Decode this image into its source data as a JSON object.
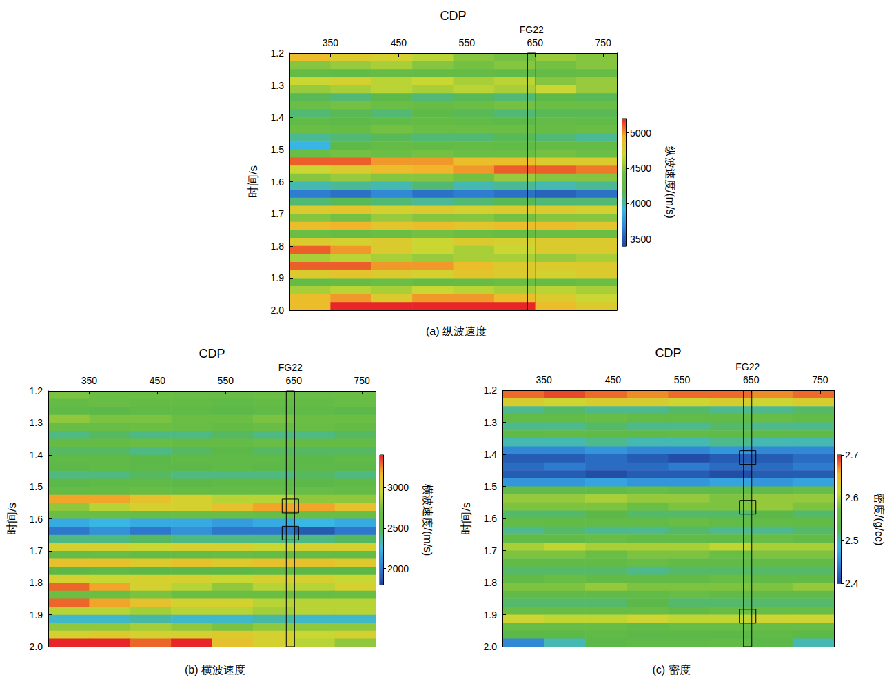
{
  "chart_data": [
    {
      "type": "heatmap",
      "xlabel": "CDP",
      "ylabel": "时间/s",
      "caption": "(a) 纵波速度",
      "xlim": [
        290,
        770
      ],
      "xticks": [
        350,
        450,
        550,
        650,
        750
      ],
      "ylim": [
        1.2,
        2.0
      ],
      "yticks": [
        1.2,
        1.3,
        1.4,
        1.5,
        1.6,
        1.7,
        1.8,
        1.9,
        {
          "value": 2,
          "label": "2.0"
        }
      ],
      "x": [
        320,
        380,
        440,
        500,
        560,
        620,
        680,
        740
      ],
      "y": [
        1.2125,
        1.2375,
        1.2625,
        1.2875,
        1.3125,
        1.3375,
        1.3625,
        1.3875,
        1.4125,
        1.4375,
        1.4625,
        1.4875,
        1.5125,
        1.5375,
        1.5625,
        1.5875,
        1.6125,
        1.6375,
        1.6625,
        1.6875,
        1.7125,
        1.7375,
        1.7625,
        1.7875,
        1.8125,
        1.8375,
        1.8625,
        1.8875,
        1.9125,
        1.9375,
        1.9625,
        1.9875
      ],
      "z": [
        [
          4900,
          4800,
          4750,
          4650,
          4500,
          4450,
          4550,
          4500
        ],
        [
          4500,
          4550,
          4600,
          4500,
          4450,
          4500,
          4450,
          4500
        ],
        [
          4300,
          4250,
          4350,
          4300,
          4300,
          4250,
          4300,
          4350
        ],
        [
          4700,
          4750,
          4650,
          4700,
          4600,
          4650,
          4500,
          4550
        ],
        [
          4550,
          4600,
          4650,
          4600,
          4650,
          4600,
          4700,
          4550
        ],
        [
          4150,
          4100,
          4200,
          4100,
          4150,
          4100,
          4200,
          4150
        ],
        [
          4400,
          4450,
          4400,
          4350,
          4400,
          4450,
          4400,
          4400
        ],
        [
          4100,
          4150,
          4100,
          4200,
          4150,
          4100,
          4150,
          4150
        ],
        [
          4250,
          4200,
          4250,
          4300,
          4250,
          4200,
          4300,
          4250
        ],
        [
          4400,
          4350,
          4450,
          4400,
          4400,
          4400,
          4350,
          4400
        ],
        [
          4050,
          4100,
          4150,
          4100,
          4100,
          4150,
          4100,
          4050
        ],
        [
          3900,
          4200,
          4300,
          4250,
          4300,
          4250,
          4300,
          4300
        ],
        [
          4400,
          4450,
          4400,
          4450,
          4400,
          4400,
          4450,
          4400
        ],
        [
          5100,
          5100,
          5000,
          5000,
          4900,
          4900,
          4800,
          4800
        ],
        [
          4700,
          4800,
          4900,
          4950,
          5000,
          5100,
          5100,
          5050
        ],
        [
          4500,
          4550,
          4500,
          4500,
          4450,
          4550,
          4500,
          4500
        ],
        [
          4000,
          4050,
          4000,
          4100,
          4000,
          4050,
          4000,
          4050
        ],
        [
          3650,
          3600,
          3700,
          3600,
          3650,
          3600,
          3550,
          3600
        ],
        [
          4100,
          4150,
          4100,
          4050,
          4100,
          4150,
          4100,
          4100
        ],
        [
          4800,
          4850,
          4750,
          4800,
          4750,
          4800,
          4800,
          4750
        ],
        [
          4500,
          4450,
          4550,
          4500,
          4500,
          4450,
          4500,
          4500
        ],
        [
          4900,
          4950,
          4850,
          4900,
          4850,
          4900,
          4900,
          4850
        ],
        [
          4400,
          4350,
          4400,
          4450,
          4400,
          4350,
          4400,
          4400
        ],
        [
          4800,
          4750,
          4800,
          4700,
          4800,
          4750,
          4800,
          4800
        ],
        [
          5100,
          5000,
          4800,
          4700,
          4600,
          4700,
          4800,
          4800
        ],
        [
          4600,
          4650,
          4600,
          4550,
          4600,
          4600,
          4550,
          4600
        ],
        [
          5100,
          5100,
          5000,
          5000,
          4900,
          4800,
          4800,
          4800
        ],
        [
          4800,
          4850,
          4800,
          4750,
          4850,
          4800,
          4750,
          4800
        ],
        [
          4300,
          4350,
          4400,
          4300,
          4350,
          4400,
          4350,
          4400
        ],
        [
          4600,
          4650,
          4600,
          4700,
          4650,
          4600,
          4650,
          4600
        ],
        [
          4900,
          5000,
          4800,
          5000,
          5000,
          4900,
          4800,
          4700
        ],
        [
          4900,
          5200,
          5200,
          5200,
          5200,
          5200,
          4900,
          4800
        ]
      ],
      "colorbar": {
        "label": "纵波速度/(m/s)",
        "range": [
          3400,
          5200
        ],
        "ticks": [
          3500,
          4000,
          4500,
          5000
        ]
      },
      "well": {
        "name": "FG22",
        "cdp": 645,
        "highlight_times": []
      }
    },
    {
      "type": "heatmap",
      "xlabel": "CDP",
      "ylabel": "时间/s",
      "caption": "(b) 横波速度",
      "xlim": [
        290,
        770
      ],
      "xticks": [
        350,
        450,
        550,
        650,
        750
      ],
      "ylim": [
        1.2,
        2.0
      ],
      "yticks": [
        1.2,
        1.3,
        1.4,
        1.5,
        1.6,
        1.7,
        1.8,
        1.9,
        {
          "value": 2,
          "label": "2.0"
        }
      ],
      "x": [
        320,
        380,
        440,
        500,
        560,
        620,
        680,
        740
      ],
      "y": [
        1.2125,
        1.2375,
        1.2625,
        1.2875,
        1.3125,
        1.3375,
        1.3625,
        1.3875,
        1.4125,
        1.4375,
        1.4625,
        1.4875,
        1.5125,
        1.5375,
        1.5625,
        1.5875,
        1.6125,
        1.6375,
        1.6625,
        1.6875,
        1.7125,
        1.7375,
        1.7625,
        1.7875,
        1.8125,
        1.8375,
        1.8625,
        1.8875,
        1.9125,
        1.9375,
        1.9625,
        1.9875
      ],
      "z": [
        [
          2750,
          2700,
          2700,
          2650,
          2650,
          2700,
          2650,
          2700
        ],
        [
          2600,
          2650,
          2600,
          2600,
          2550,
          2600,
          2600,
          2650
        ],
        [
          2550,
          2500,
          2550,
          2550,
          2500,
          2550,
          2550,
          2500
        ],
        [
          2800,
          2750,
          2750,
          2700,
          2700,
          2750,
          2700,
          2700
        ],
        [
          2650,
          2650,
          2700,
          2650,
          2600,
          2650,
          2650,
          2600
        ],
        [
          2400,
          2450,
          2400,
          2400,
          2450,
          2400,
          2400,
          2450
        ],
        [
          2600,
          2600,
          2650,
          2600,
          2600,
          2650,
          2600,
          2600
        ],
        [
          2450,
          2450,
          2400,
          2450,
          2500,
          2450,
          2450,
          2450
        ],
        [
          2550,
          2550,
          2500,
          2550,
          2550,
          2550,
          2500,
          2550
        ],
        [
          2500,
          2550,
          2500,
          2500,
          2550,
          2500,
          2500,
          2500
        ],
        [
          2400,
          2400,
          2450,
          2400,
          2400,
          2400,
          2450,
          2400
        ],
        [
          2500,
          2550,
          2550,
          2500,
          2550,
          2550,
          2500,
          2550
        ],
        [
          2600,
          2600,
          2650,
          2600,
          2600,
          2600,
          2650,
          2600
        ],
        [
          3200,
          3200,
          3100,
          3000,
          2900,
          2900,
          2800,
          2800
        ],
        [
          2800,
          2900,
          3000,
          3000,
          3100,
          3200,
          3200,
          3100
        ],
        [
          2700,
          2700,
          2650,
          2700,
          2700,
          2650,
          2700,
          2700
        ],
        [
          2200,
          2250,
          2200,
          2200,
          2150,
          2200,
          2250,
          2200
        ],
        [
          2000,
          2100,
          2000,
          2100,
          2000,
          2000,
          1900,
          2000
        ],
        [
          2400,
          2400,
          2450,
          2400,
          2400,
          2400,
          2400,
          2450
        ],
        [
          3000,
          3000,
          2950,
          3000,
          3000,
          2950,
          3000,
          3000
        ],
        [
          2600,
          2650,
          2600,
          2600,
          2650,
          2600,
          2600,
          2600
        ],
        [
          3100,
          3100,
          3050,
          3100,
          3050,
          3100,
          3100,
          3050
        ],
        [
          2500,
          2550,
          2500,
          2500,
          2500,
          2550,
          2500,
          2500
        ],
        [
          3000,
          2950,
          3000,
          3000,
          2950,
          3000,
          3000,
          2950
        ],
        [
          3300,
          3200,
          3000,
          2900,
          2800,
          2900,
          2900,
          3000
        ],
        [
          2700,
          2700,
          2750,
          2700,
          2700,
          2700,
          2650,
          2700
        ],
        [
          3300,
          3200,
          3100,
          3000,
          3000,
          2900,
          2900,
          2900
        ],
        [
          2900,
          2900,
          2850,
          2900,
          2900,
          2850,
          2900,
          2900
        ],
        [
          2300,
          2300,
          2350,
          2300,
          2300,
          2350,
          2300,
          2300
        ],
        [
          2800,
          2800,
          2850,
          2800,
          2750,
          2800,
          2800,
          2800
        ],
        [
          3000,
          3050,
          3000,
          3000,
          3050,
          3000,
          2950,
          3000
        ],
        [
          3400,
          3400,
          3300,
          3400,
          3100,
          3000,
          2900,
          2800
        ]
      ],
      "colorbar": {
        "label": "横波速度/(m/s)",
        "range": [
          1800,
          3400
        ],
        "ticks": [
          2000,
          2500,
          3000
        ]
      },
      "well": {
        "name": "FG22",
        "cdp": 645,
        "highlight_times": [
          1.56,
          1.645
        ]
      }
    },
    {
      "type": "heatmap",
      "xlabel": "CDP",
      "ylabel": "时间/s",
      "caption": "(c) 密度",
      "xlim": [
        290,
        770
      ],
      "xticks": [
        350,
        450,
        550,
        650,
        750
      ],
      "ylim": [
        1.2,
        2.0
      ],
      "yticks": [
        1.2,
        1.3,
        1.4,
        1.5,
        1.6,
        1.7,
        1.8,
        1.9,
        {
          "value": 2,
          "label": "2.0"
        }
      ],
      "x": [
        320,
        380,
        440,
        500,
        560,
        620,
        680,
        740
      ],
      "y": [
        1.2125,
        1.2375,
        1.2625,
        1.2875,
        1.3125,
        1.3375,
        1.3625,
        1.3875,
        1.4125,
        1.4375,
        1.4625,
        1.4875,
        1.5125,
        1.5375,
        1.5625,
        1.5875,
        1.6125,
        1.6375,
        1.6625,
        1.6875,
        1.7125,
        1.7375,
        1.7625,
        1.7875,
        1.8125,
        1.8375,
        1.8625,
        1.8875,
        1.9125,
        1.9375,
        1.9625,
        1.9875
      ],
      "z": [
        [
          2.68,
          2.69,
          2.68,
          2.67,
          2.68,
          2.68,
          2.67,
          2.68
        ],
        [
          2.63,
          2.62,
          2.63,
          2.63,
          2.62,
          2.63,
          2.62,
          2.63
        ],
        [
          2.51,
          2.52,
          2.51,
          2.51,
          2.52,
          2.51,
          2.51,
          2.52
        ],
        [
          2.55,
          2.55,
          2.56,
          2.55,
          2.55,
          2.55,
          2.56,
          2.55
        ],
        [
          2.51,
          2.51,
          2.52,
          2.51,
          2.51,
          2.52,
          2.51,
          2.51
        ],
        [
          2.54,
          2.55,
          2.54,
          2.54,
          2.55,
          2.54,
          2.54,
          2.54
        ],
        [
          2.5,
          2.5,
          2.51,
          2.5,
          2.5,
          2.51,
          2.5,
          2.5
        ],
        [
          2.45,
          2.45,
          2.46,
          2.45,
          2.45,
          2.46,
          2.45,
          2.45
        ],
        [
          2.42,
          2.42,
          2.43,
          2.42,
          2.41,
          2.42,
          2.42,
          2.43
        ],
        [
          2.43,
          2.44,
          2.43,
          2.43,
          2.44,
          2.43,
          2.43,
          2.44
        ],
        [
          2.42,
          2.42,
          2.41,
          2.42,
          2.42,
          2.41,
          2.42,
          2.42
        ],
        [
          2.46,
          2.46,
          2.47,
          2.46,
          2.46,
          2.47,
          2.46,
          2.47
        ],
        [
          2.55,
          2.55,
          2.55,
          2.56,
          2.55,
          2.55,
          2.55,
          2.56
        ],
        [
          2.59,
          2.59,
          2.6,
          2.59,
          2.59,
          2.58,
          2.59,
          2.59
        ],
        [
          2.58,
          2.58,
          2.58,
          2.57,
          2.58,
          2.58,
          2.59,
          2.58
        ],
        [
          2.52,
          2.52,
          2.53,
          2.52,
          2.52,
          2.52,
          2.53,
          2.52
        ],
        [
          2.55,
          2.55,
          2.55,
          2.55,
          2.56,
          2.55,
          2.55,
          2.55
        ],
        [
          2.51,
          2.52,
          2.51,
          2.51,
          2.52,
          2.51,
          2.51,
          2.52
        ],
        [
          2.55,
          2.55,
          2.56,
          2.55,
          2.55,
          2.55,
          2.56,
          2.55
        ],
        [
          2.6,
          2.61,
          2.6,
          2.6,
          2.6,
          2.61,
          2.6,
          2.6
        ],
        [
          2.58,
          2.58,
          2.57,
          2.58,
          2.58,
          2.57,
          2.58,
          2.58
        ],
        [
          2.55,
          2.55,
          2.55,
          2.56,
          2.55,
          2.55,
          2.55,
          2.55
        ],
        [
          2.52,
          2.52,
          2.52,
          2.51,
          2.52,
          2.52,
          2.52,
          2.52
        ],
        [
          2.55,
          2.56,
          2.55,
          2.55,
          2.55,
          2.56,
          2.55,
          2.55
        ],
        [
          2.58,
          2.58,
          2.59,
          2.58,
          2.58,
          2.58,
          2.58,
          2.59
        ],
        [
          2.55,
          2.55,
          2.55,
          2.55,
          2.56,
          2.55,
          2.55,
          2.55
        ],
        [
          2.52,
          2.52,
          2.52,
          2.53,
          2.52,
          2.52,
          2.52,
          2.52
        ],
        [
          2.56,
          2.56,
          2.56,
          2.56,
          2.55,
          2.56,
          2.56,
          2.56
        ],
        [
          2.62,
          2.61,
          2.61,
          2.62,
          2.61,
          2.61,
          2.62,
          2.62
        ],
        [
          2.56,
          2.56,
          2.56,
          2.55,
          2.56,
          2.56,
          2.56,
          2.56
        ],
        [
          2.53,
          2.53,
          2.54,
          2.53,
          2.53,
          2.53,
          2.54,
          2.53
        ],
        [
          2.45,
          2.5,
          2.53,
          2.54,
          2.54,
          2.55,
          2.53,
          2.5
        ]
      ],
      "colorbar": {
        "label": "密度/(g/cc)",
        "range": [
          2.4,
          2.7
        ],
        "ticks": [
          2.4,
          2.5,
          2.6,
          2.7
        ]
      },
      "well": {
        "name": "FG22",
        "cdp": 645,
        "highlight_times": [
          1.41,
          1.565,
          1.905
        ]
      }
    }
  ]
}
